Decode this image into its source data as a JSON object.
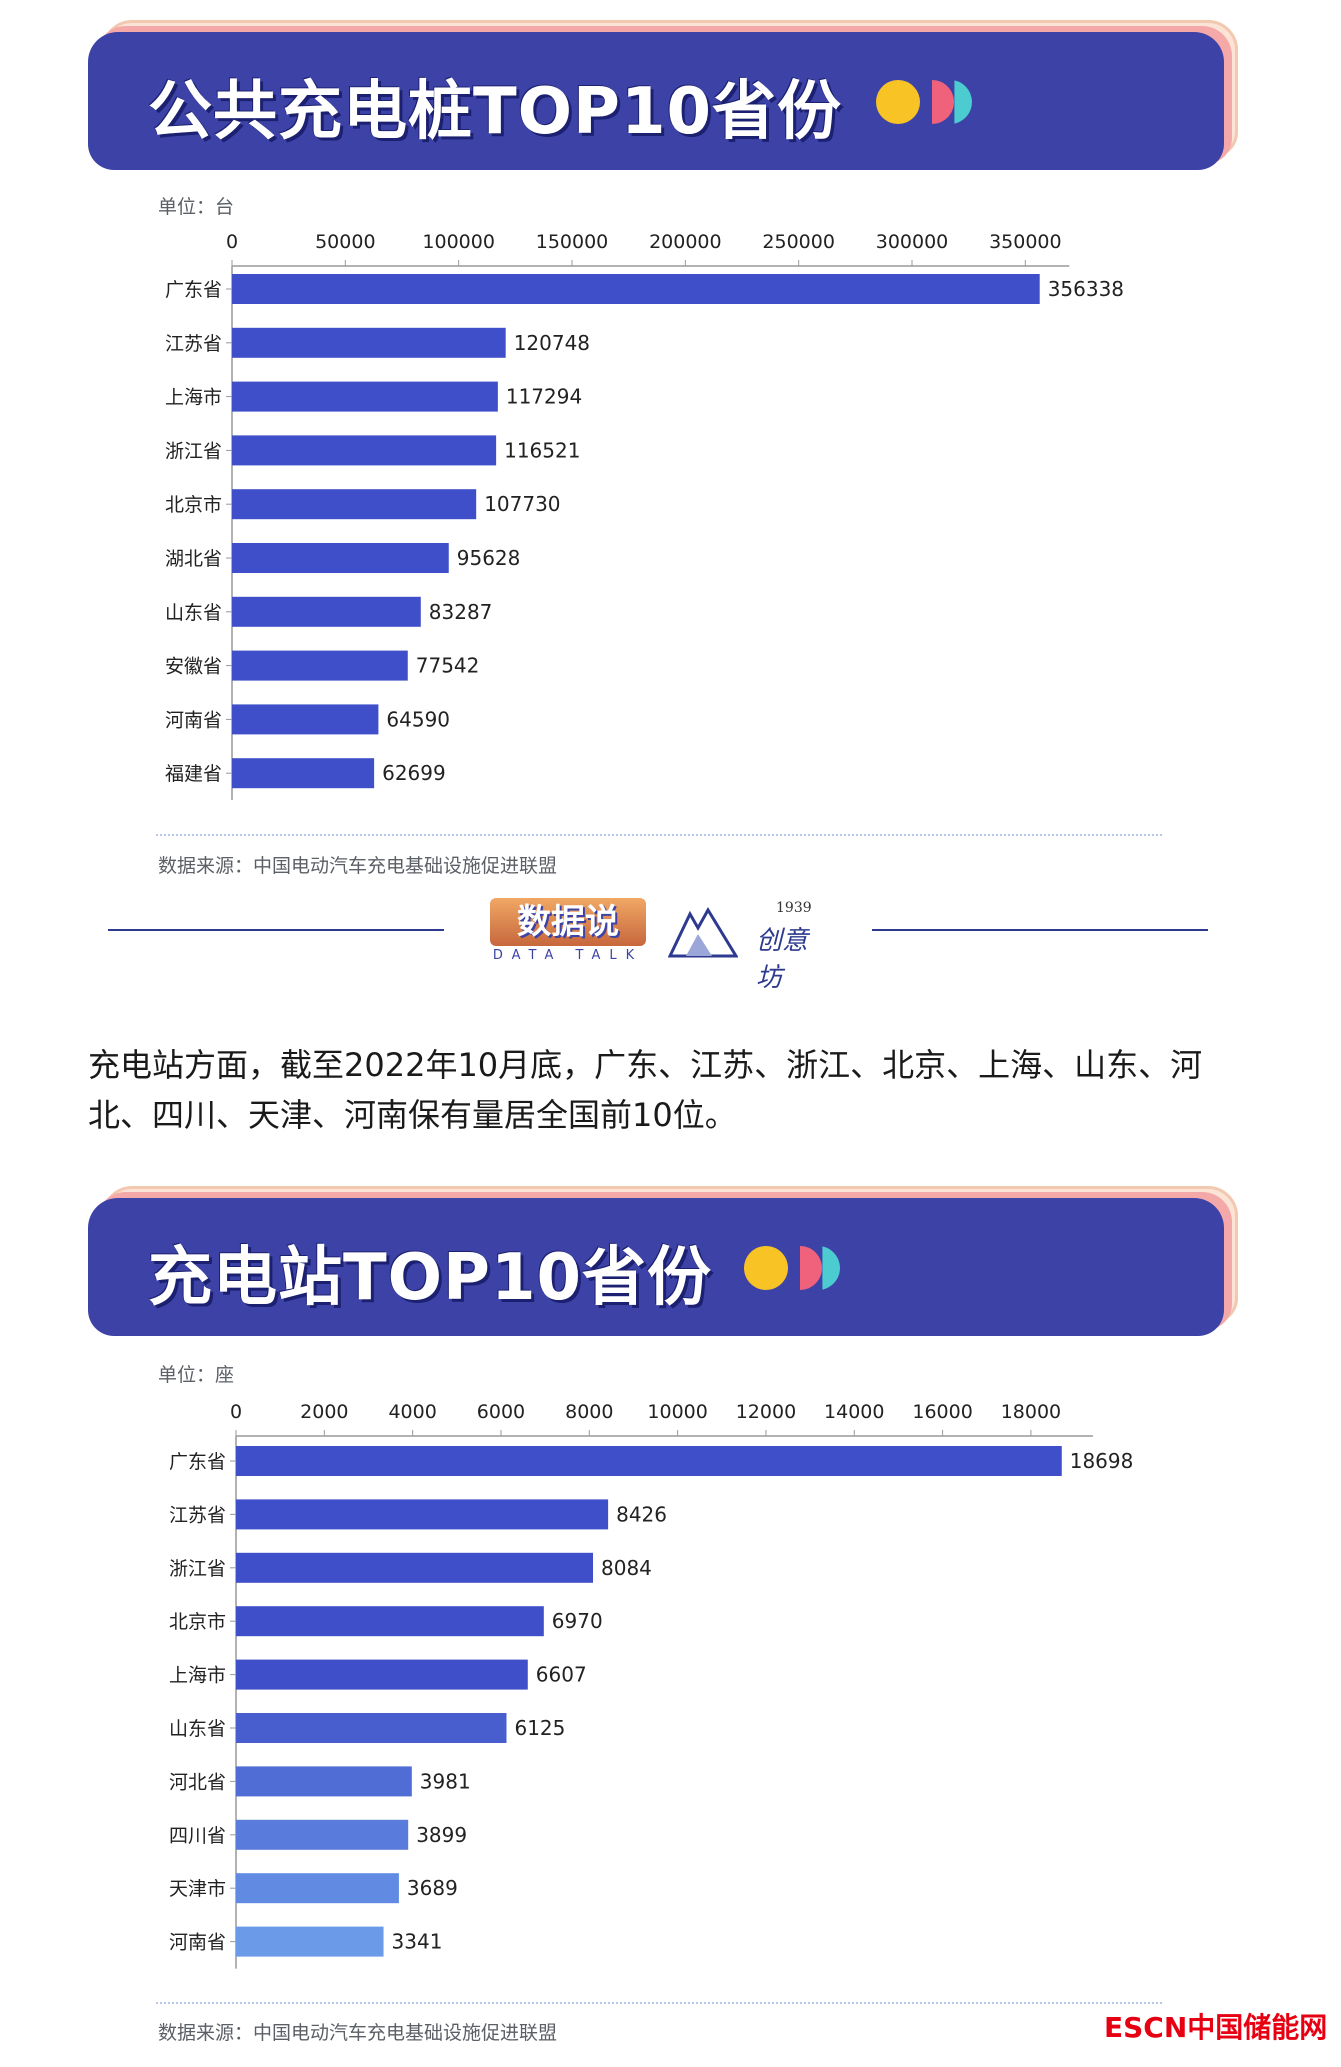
{
  "charts_section": [
    {
      "banner_title": "公共充电桩TOP10省份",
      "unit_label": "单位：台",
      "source_label": "数据来源：中国电动汽车充电基础设施促进联盟"
    },
    {
      "banner_title": "充电站TOP10省份",
      "unit_label": "单位：座",
      "source_label": "数据来源：中国电动汽车充电基础设施促进联盟"
    }
  ],
  "logos": {
    "data_talk_main": "数据说",
    "data_talk_sub": "DATA TALK",
    "studio_year": "1939",
    "studio_name": "创意坊"
  },
  "paragraph": "充电站方面，截至2022年10月底，广东、江苏、浙江、北京、上海、山东、河北、四川、天津、河南保有量居全国前10位。",
  "watermark": "ESCN中国储能网",
  "colors": {
    "banner": "#3d43a6",
    "bar_dark": "#3f4fc9",
    "bar_light": "#6a9ae8",
    "dot_yellow": "#f7c325",
    "dot_pink": "#f0627c",
    "dot_cyan": "#4ccbd0",
    "watermark": "#e60012"
  },
  "chart_data": [
    {
      "type": "bar",
      "orientation": "horizontal",
      "title": "公共充电桩TOP10省份",
      "unit": "单位：台",
      "categories": [
        "广东省",
        "江苏省",
        "上海市",
        "浙江省",
        "北京市",
        "湖北省",
        "山东省",
        "安徽省",
        "河南省",
        "福建省"
      ],
      "values": [
        356338,
        120748,
        117294,
        116521,
        107730,
        95628,
        83287,
        77542,
        64590,
        62699
      ],
      "xlim": [
        0,
        375000
      ],
      "ticks": [
        0,
        50000,
        100000,
        150000,
        200000,
        250000,
        300000,
        350000
      ],
      "tick_labels": [
        "0",
        "50000",
        "100000",
        "150000",
        "200000",
        "250000",
        "300000",
        "350000"
      ],
      "axis_position": "top",
      "data_labels": true,
      "grid": false,
      "source": "数据来源：中国电动汽车充电基础设施促进联盟"
    },
    {
      "type": "bar",
      "orientation": "horizontal",
      "title": "充电站TOP10省份",
      "unit": "单位：座",
      "categories": [
        "广东省",
        "江苏省",
        "浙江省",
        "北京市",
        "上海市",
        "山东省",
        "河北省",
        "四川省",
        "天津市",
        "河南省"
      ],
      "values": [
        18698,
        8426,
        8084,
        6970,
        6607,
        6125,
        3981,
        3899,
        3689,
        3341
      ],
      "xlim": [
        0,
        19700
      ],
      "ticks": [
        0,
        2000,
        4000,
        6000,
        8000,
        10000,
        12000,
        14000,
        16000,
        18000
      ],
      "tick_labels": [
        "0",
        "2000",
        "4000",
        "6000",
        "8000",
        "10000",
        "12000",
        "14000",
        "16000",
        "18000"
      ],
      "axis_position": "top",
      "data_labels": true,
      "grid": false,
      "source": "数据来源：中国电动汽车充电基础设施促进联盟"
    }
  ]
}
